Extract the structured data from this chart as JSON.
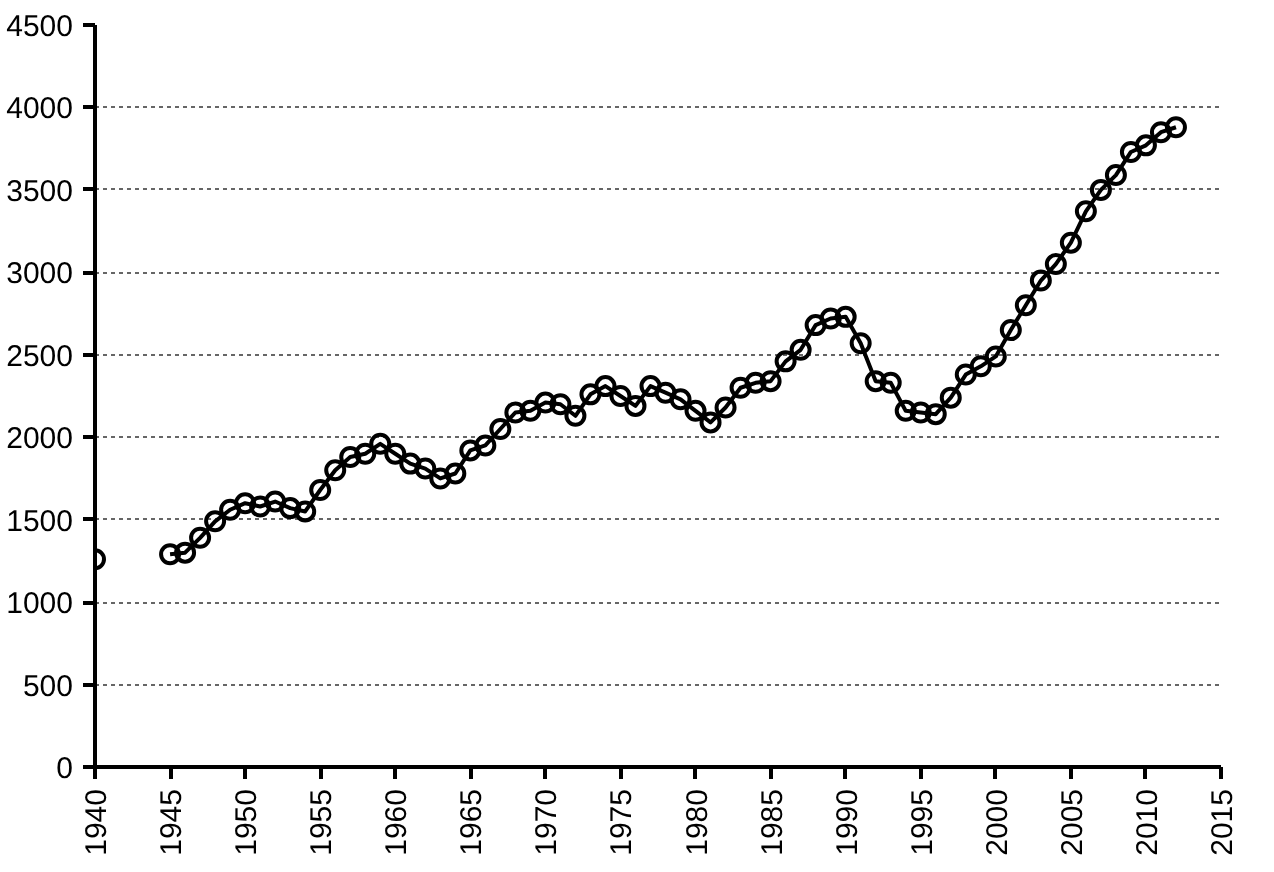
{
  "chart_data": {
    "type": "line",
    "marker": "circle",
    "line_style": "solid",
    "grid": "y",
    "xlim": [
      1940,
      2015
    ],
    "xticks": [
      1940,
      1945,
      1950,
      1955,
      1960,
      1965,
      1970,
      1975,
      1980,
      1985,
      1990,
      1995,
      2000,
      2005,
      2010,
      2015
    ],
    "ylim": [
      0,
      4500
    ],
    "yticks": [
      0,
      500,
      1000,
      1500,
      2000,
      2500,
      3000,
      3500,
      4000,
      4500
    ],
    "series": [
      {
        "color": "#000000",
        "x": [
          1940,
          1941,
          1942,
          1943,
          1944,
          1945,
          1946,
          1947,
          1948,
          1949,
          1950,
          1951,
          1952,
          1953,
          1954,
          1955,
          1956,
          1957,
          1958,
          1959,
          1960,
          1961,
          1962,
          1963,
          1964,
          1965,
          1966,
          1967,
          1968,
          1969,
          1970,
          1971,
          1972,
          1973,
          1974,
          1975,
          1976,
          1977,
          1978,
          1979,
          1980,
          1981,
          1982,
          1983,
          1984,
          1985,
          1986,
          1987,
          1988,
          1989,
          1990,
          1991,
          1992,
          1993,
          1994,
          1995,
          1996,
          1997,
          1998,
          1999,
          2000,
          2001,
          2002,
          2003,
          2004,
          2005,
          2006,
          2007,
          2008,
          2009,
          2010,
          2011,
          2012
        ],
        "values": [
          1260,
          null,
          null,
          null,
          null,
          1290,
          1300,
          1390,
          1490,
          1560,
          1600,
          1580,
          1610,
          1570,
          1550,
          1680,
          1800,
          1880,
          1900,
          1960,
          1900,
          1840,
          1810,
          1750,
          1780,
          1920,
          1950,
          2050,
          2150,
          2160,
          2210,
          2200,
          2130,
          2260,
          2310,
          2250,
          2190,
          2310,
          2270,
          2230,
          2160,
          2090,
          2180,
          2300,
          2330,
          2340,
          2460,
          2530,
          2680,
          2720,
          2730,
          2570,
          2340,
          2330,
          2160,
          2150,
          2140,
          2240,
          2380,
          2430,
          2490,
          2650,
          2800,
          2950,
          3050,
          3180,
          3370,
          3500,
          3590,
          3730,
          3770,
          3850,
          3880
        ]
      }
    ]
  }
}
